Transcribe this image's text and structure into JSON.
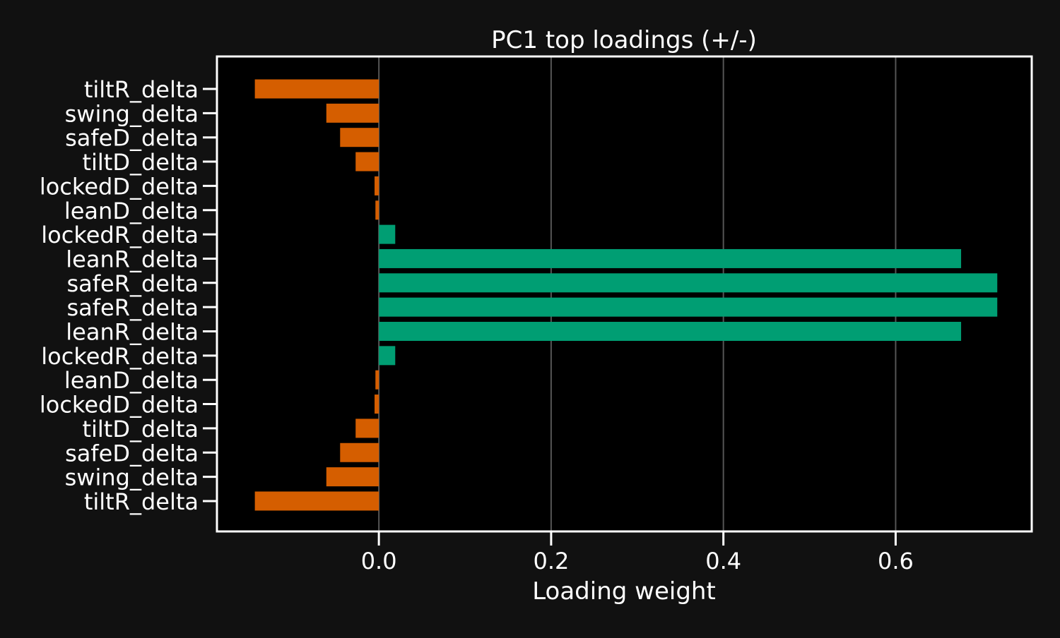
{
  "colors": {
    "figure_background": "#111111",
    "plot_background": "#000000",
    "positive": "#009e73",
    "negative": "#d55e00",
    "text": "#ffffff",
    "grid": "#555555"
  },
  "chart_data": {
    "type": "bar",
    "orientation": "horizontal",
    "title": "PC1 top loadings (+/-)",
    "xlabel": "Loading weight",
    "ylabel": "",
    "xlim": [
      -0.188,
      0.758
    ],
    "xticks": [
      0.0,
      0.2,
      0.4,
      0.6
    ],
    "xtick_labels": [
      "0.0",
      "0.2",
      "0.4",
      "0.6"
    ],
    "grid": "vertical",
    "legend": "none",
    "categories": [
      "tiltR_delta",
      "swing_delta",
      "safeD_delta",
      "tiltD_delta",
      "lockedD_delta",
      "leanD_delta",
      "lockedR_delta",
      "leanR_delta",
      "safeR_delta",
      "safeR_delta",
      "leanR_delta",
      "lockedR_delta",
      "leanD_delta",
      "lockedD_delta",
      "tiltD_delta",
      "safeD_delta",
      "swing_delta",
      "tiltR_delta"
    ],
    "values": [
      -0.144,
      -0.061,
      -0.045,
      -0.027,
      -0.005,
      -0.004,
      0.019,
      0.676,
      0.718,
      0.718,
      0.676,
      0.019,
      -0.004,
      -0.005,
      -0.027,
      -0.045,
      -0.061,
      -0.144
    ]
  }
}
